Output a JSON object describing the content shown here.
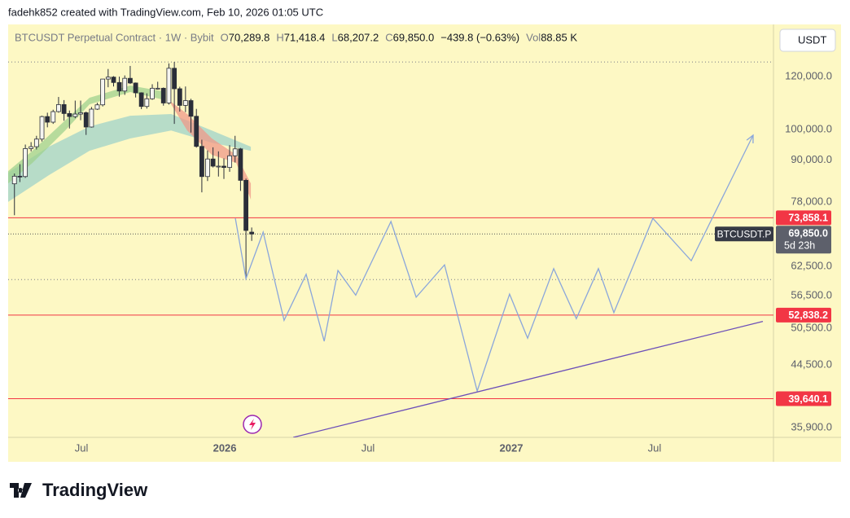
{
  "header": {
    "credit": "fadehk852 created with TradingView.com, Feb 10, 2026 01:05 UTC",
    "logo": "TradingView"
  },
  "chart_data": {
    "type": "candlestick",
    "title": "BTCUSDT Perpetual Contract · 1W · Bybit",
    "ohlc": [
      {
        "label": "O",
        "value": "70,289.8"
      },
      {
        "label": "H",
        "value": "71,418.4"
      },
      {
        "label": "L",
        "value": "68,207.2"
      },
      {
        "label": "C",
        "value": "69,850.0"
      }
    ],
    "change": "−439.8 (−0.63%)",
    "volume": {
      "label": "Vol",
      "value": "88.85 K"
    },
    "currency": "USDT",
    "log_scale": true,
    "grid": false,
    "xlim": [
      2025.244,
      2027.915
    ],
    "xticks": [
      {
        "value": 2025.5,
        "label": "Jul"
      },
      {
        "value": 2026,
        "label": "2026"
      },
      {
        "value": 2026.5,
        "label": "Jul"
      },
      {
        "value": 2027,
        "label": "2027"
      },
      {
        "value": 2027.5,
        "label": "Jul"
      }
    ],
    "ylim": [
      34700,
      143600
    ],
    "yticks": [
      {
        "value": 120000,
        "label": "120,000.0"
      },
      {
        "value": 100000,
        "label": "100,000.0"
      },
      {
        "value": 90000,
        "label": "90,000.0"
      },
      {
        "value": 78000,
        "label": "78,000.0"
      },
      {
        "value": 62500,
        "label": "62,500.0"
      },
      {
        "value": 56500,
        "label": "56,500.0"
      },
      {
        "value": 50500,
        "label": "50,500.0"
      },
      {
        "value": 44500,
        "label": "44,500.0"
      },
      {
        "value": 35900,
        "label": "35,900.0"
      }
    ],
    "candles": {
      "up_color": "#f5f5f0",
      "down_color": "#2a2e39",
      "x": [
        2025.266,
        2025.285,
        2025.304,
        2025.324,
        2025.343,
        2025.362,
        2025.381,
        2025.401,
        2025.42,
        2025.439,
        2025.458,
        2025.478,
        2025.497,
        2025.516,
        2025.535,
        2025.555,
        2025.574,
        2025.593,
        2025.612,
        2025.632,
        2025.651,
        2025.67,
        2025.689,
        2025.709,
        2025.728,
        2025.747,
        2025.766,
        2025.786,
        2025.805,
        2025.824,
        2025.843,
        2025.863,
        2025.882,
        2025.901,
        2025.92,
        2025.94,
        2025.959,
        2025.978,
        2025.997,
        2026.017,
        2026.036,
        2026.055,
        2026.074,
        2026.094
      ],
      "open": [
        83000,
        85200,
        85100,
        93700,
        94300,
        96800,
        104600,
        102600,
        106400,
        109000,
        105700,
        104600,
        105500,
        106000,
        100900,
        107300,
        108900,
        119000,
        119800,
        117600,
        114200,
        119300,
        117400,
        113500,
        108300,
        111200,
        115300,
        115300,
        109600,
        123500,
        115100,
        108700,
        110500,
        104700,
        94400,
        85100,
        90400,
        88200,
        88200,
        87800,
        91400,
        93600,
        84000,
        70289.8
      ],
      "high": [
        86000,
        88800,
        95000,
        95800,
        97900,
        104900,
        106000,
        107100,
        111900,
        110700,
        106800,
        110500,
        110500,
        106400,
        108100,
        109700,
        119000,
        123200,
        120200,
        120000,
        120500,
        124500,
        117600,
        113700,
        113300,
        116900,
        117900,
        115600,
        125600,
        126200,
        115900,
        116000,
        111200,
        107400,
        96600,
        93100,
        94100,
        92800,
        90600,
        94800,
        97900,
        93900,
        84500,
        71418.4
      ],
      "low": [
        74500,
        83500,
        84700,
        92800,
        93400,
        96000,
        100800,
        102000,
        106000,
        103100,
        100400,
        104000,
        103300,
        98200,
        100700,
        107000,
        108300,
        115700,
        116000,
        112000,
        112700,
        117000,
        111700,
        107300,
        107500,
        110800,
        114800,
        108600,
        109000,
        102000,
        106400,
        106200,
        99000,
        94000,
        80600,
        83800,
        87800,
        85100,
        84400,
        86500,
        89300,
        81000,
        60000,
        68207.2
      ],
      "close": [
        85200,
        85100,
        93700,
        94300,
        96800,
        104600,
        102600,
        106400,
        109000,
        105700,
        104600,
        105500,
        106000,
        100900,
        107300,
        108900,
        119000,
        119800,
        117600,
        114200,
        119300,
        117400,
        113500,
        108300,
        111200,
        115300,
        115300,
        109600,
        123500,
        115100,
        108700,
        110500,
        104700,
        94400,
        85100,
        90400,
        88200,
        88200,
        87800,
        91400,
        93600,
        84000,
        70700,
        69850
      ]
    },
    "bands": [
      {
        "color": "#9fd3c9",
        "x": [
          2025.244,
          2025.386,
          2025.528,
          2025.67,
          2025.813,
          2025.955,
          2026.091
        ],
        "upper": [
          86200,
          94300,
          101100,
          104900,
          105500,
          99700,
          94300
        ],
        "lower": [
          78000,
          85500,
          93000,
          97000,
          99700,
          95600,
          93000
        ]
      },
      {
        "color": "#9fd28f",
        "x": [
          2025.244,
          2025.329,
          2025.443,
          2025.528,
          2025.67,
          2025.784
        ],
        "upper": [
          86700,
          93000,
          103200,
          111600,
          116400,
          114100
        ],
        "lower": [
          83100,
          89200,
          99700,
          109100,
          113800,
          110900
        ]
      },
      {
        "color": "#ef9a8a",
        "x": [
          2025.813,
          2025.869,
          2025.955,
          2026.04,
          2026.091
        ],
        "upper": [
          110000,
          105500,
          97000,
          91700,
          83100
        ],
        "lower": [
          109100,
          99700,
          91700,
          89200,
          78600
        ]
      }
    ],
    "levels": [
      {
        "value": 73858.1,
        "label": "73,858.1",
        "color": "#f23645",
        "style": "solid"
      },
      {
        "value": 52838.2,
        "label": "52,838.2",
        "color": "#f23645",
        "style": "solid"
      },
      {
        "value": 39640.1,
        "label": "39,640.1",
        "color": "#f23645",
        "style": "solid"
      },
      {
        "value": 126200,
        "color": "#787b86",
        "style": "dotted"
      },
      {
        "value": 59700,
        "color": "#787b86",
        "style": "dotted"
      }
    ],
    "last_price": {
      "value": 69850,
      "symbol": "BTCUSDT.P",
      "label": "69,850.0",
      "countdown": "5d 23h"
    },
    "projection": {
      "color": "#8aa6db",
      "x": [
        2026.037,
        2026.074,
        2026.134,
        2026.207,
        2026.284,
        2026.347,
        2026.395,
        2026.457,
        2026.58,
        2026.668,
        2026.767,
        2026.881,
        2026.994,
        2027.057,
        2027.148,
        2027.227,
        2027.304,
        2027.358,
        2027.494,
        2027.628,
        2027.844
      ],
      "values": [
        73700,
        59900,
        70300,
        51900,
        60800,
        48300,
        61600,
        56600,
        72900,
        56200,
        62800,
        40700,
        56800,
        48800,
        62000,
        52200,
        62000,
        53300,
        73700,
        63700,
        98100
      ]
    },
    "trend": {
      "color": "#6c4fb8",
      "x": [
        2026.239,
        2027.878
      ],
      "values": [
        34700,
        51700
      ]
    }
  }
}
